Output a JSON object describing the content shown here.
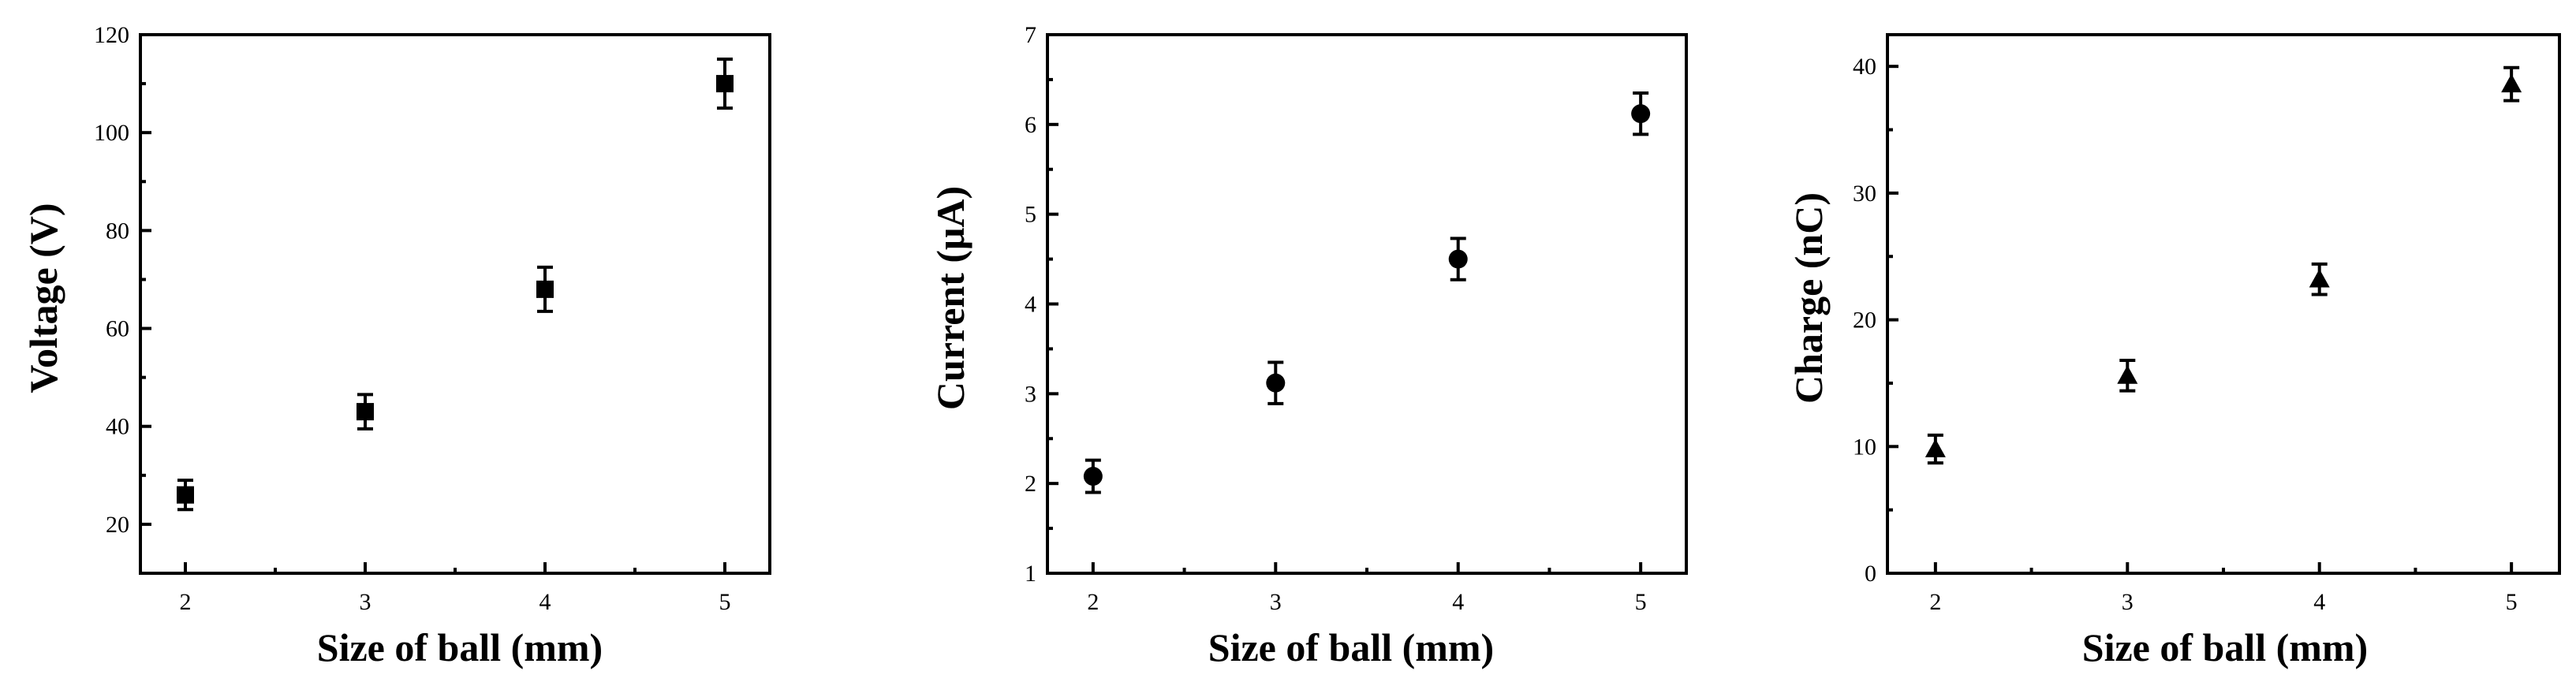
{
  "chart_data": [
    {
      "type": "scatter",
      "xlabel": "Size of ball (mm)",
      "ylabel": "Voltage (V)",
      "marker": "square",
      "x": [
        2,
        3,
        4,
        5
      ],
      "y": [
        26,
        43,
        68,
        110
      ],
      "yerr": [
        3,
        3.5,
        4.5,
        5
      ],
      "xlim": [
        1.75,
        5.25
      ],
      "ylim": [
        10,
        120
      ],
      "xticks": [
        2,
        3,
        4,
        5
      ],
      "yticks": [
        20,
        40,
        60,
        80,
        100,
        120
      ],
      "x_tick_labels": [
        "2",
        "3",
        "4",
        "5"
      ],
      "y_tick_labels": [
        "20",
        "40",
        "60",
        "80",
        "100",
        "120"
      ],
      "grid": false
    },
    {
      "type": "scatter",
      "xlabel": "Size of ball (mm)",
      "ylabel": "Current (μA)",
      "marker": "circle",
      "x": [
        2,
        3,
        4,
        5
      ],
      "y": [
        2.08,
        3.12,
        4.5,
        6.12
      ],
      "yerr": [
        0.18,
        0.23,
        0.23,
        0.23
      ],
      "xlim": [
        1.75,
        5.25
      ],
      "ylim": [
        1,
        7
      ],
      "xticks": [
        2,
        3,
        4,
        5
      ],
      "yticks": [
        1,
        2,
        3,
        4,
        5,
        6,
        7
      ],
      "x_tick_labels": [
        "2",
        "3",
        "4",
        "5"
      ],
      "y_tick_labels": [
        "1",
        "2",
        "3",
        "4",
        "5",
        "6",
        "7"
      ],
      "grid": false
    },
    {
      "type": "scatter",
      "xlabel": "Size of ball (mm)",
      "ylabel": "Charge (nC)",
      "marker": "triangle",
      "x": [
        2,
        3,
        4,
        5
      ],
      "y": [
        9.8,
        15.6,
        23.2,
        38.6
      ],
      "yerr": [
        1.1,
        1.2,
        1.2,
        1.3
      ],
      "xlim": [
        1.75,
        5.25
      ],
      "ylim": [
        0,
        42.5
      ],
      "xticks": [
        2,
        3,
        4,
        5
      ],
      "yticks": [
        0,
        10,
        20,
        30,
        40
      ],
      "x_tick_labels": [
        "2",
        "3",
        "4",
        "5"
      ],
      "y_tick_labels": [
        "0",
        "10",
        "20",
        "30",
        "40"
      ],
      "grid": false
    }
  ]
}
